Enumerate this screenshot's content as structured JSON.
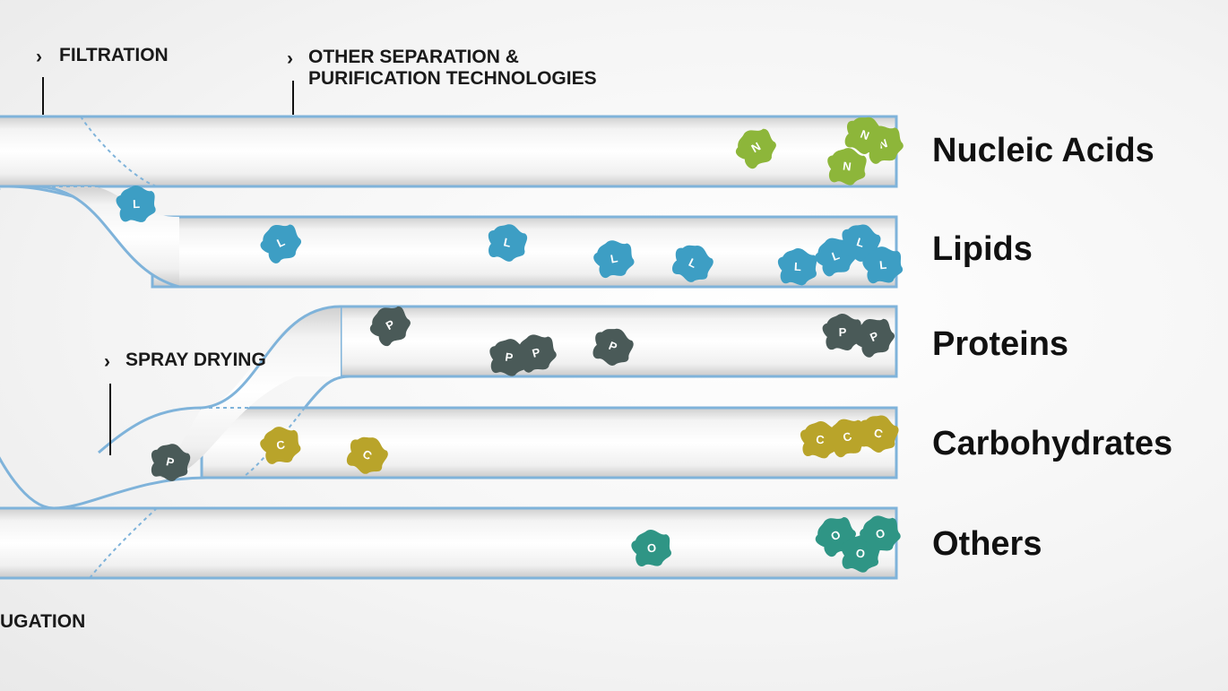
{
  "techniques": {
    "filtration": "FILTRATION",
    "other_separation_line1": "OTHER SEPARATION &",
    "other_separation_line2": "PURIFICATION TECHNOLOGIES",
    "spray_drying": "SPRAY DRYING",
    "centrifugation_partial": "UGATION"
  },
  "rows": [
    {
      "label": "Nucleic Acids",
      "letter": "N",
      "color": "#8db63a"
    },
    {
      "label": "Lipids",
      "letter": "L",
      "color": "#3d9ec4"
    },
    {
      "label": "Proteins",
      "letter": "P",
      "color": "#4a5a58"
    },
    {
      "label": "Carbohydrates",
      "letter": "C",
      "color": "#b9a42a"
    },
    {
      "label": "Others",
      "letter": "O",
      "color": "#2f9585"
    }
  ],
  "colors": {
    "tube_outline": "#7fb3da",
    "tube_fill": "#f7f7f7",
    "text": "#111111"
  },
  "icons": {
    "marker": "chevron-right-icon",
    "molecule": "blob-icon"
  }
}
